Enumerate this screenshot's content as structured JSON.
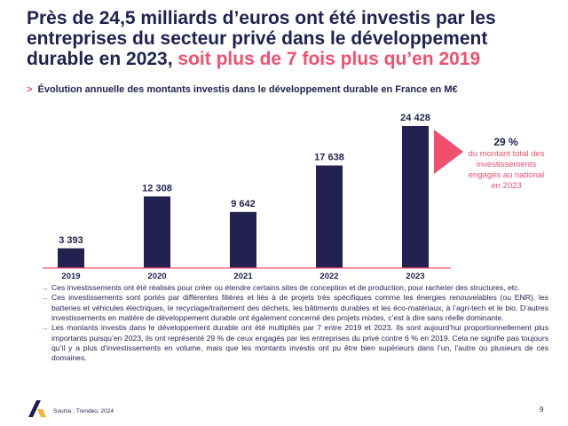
{
  "title": {
    "main": "Près de 24,5 milliards d’euros ont été investis par les entreprises du secteur privé dans le développement durable en 2023, ",
    "highlight": "soit plus de 7 fois plus qu’en 2019"
  },
  "subtitle": {
    "marker": ">",
    "text": "Évolution annuelle des montants investis dans le développement durable en France en M€"
  },
  "chart_data": {
    "type": "bar",
    "title": "Évolution annuelle des montants investis dans le développement durable en France en M€",
    "categories": [
      "2019",
      "2020",
      "2021",
      "2022",
      "2023"
    ],
    "values": [
      3393,
      12308,
      9642,
      17638,
      24428
    ],
    "value_labels": [
      "3 393",
      "12 308",
      "9 642",
      "17 638",
      "24 428"
    ],
    "xlabel": "",
    "ylabel": "",
    "ylim": [
      0,
      24428
    ],
    "grid": false,
    "bar_color": "#22214f",
    "axis_color": "#f0506e"
  },
  "callout": {
    "percent": "29 %",
    "text": "du montant total des investissements engagés au national en 2023",
    "arrow_color": "#f0506e"
  },
  "bullets": {
    "marker": "→",
    "items": [
      "Ces investissements ont été réalisés pour créer ou étendre certains sites de conception et de production, pour racheter des structures, etc.",
      "Ces investissements sont portés par différentes filières et liés à de projets très spécifiques comme les énergies renouvelables (ou ENR), les batteries et véhicules électriques, le recyclage/traitement des déchets, les bâtiments durables et les éco-matériaux, à l’agri-tech et le bio. D’autres investissements en matière de développement durable ont également concerné des projets mixtes, c’est à dire sans réelle dominante.",
      "Les montants investis dans le développement durable ont été multipliés par 7 entre 2019 et 2023. Ils sont aujourd’hui proportionnellement plus importants puisqu’en 2023, ils ont représenté 29 % de ceux engagés par les entreprises du privé contre 6 % en 2019. Cela ne signifie  pas toujours qu’il y a plus d’investissements en volume, mais que les montants investis ont pu être bien supérieurs dans l’un, l’autre ou plusieurs de ces domaines."
    ]
  },
  "footer": {
    "source": "Source : Trendeo, 2024",
    "page_number": "9"
  },
  "colors": {
    "navy": "#1f2150",
    "accent": "#f0506e"
  }
}
